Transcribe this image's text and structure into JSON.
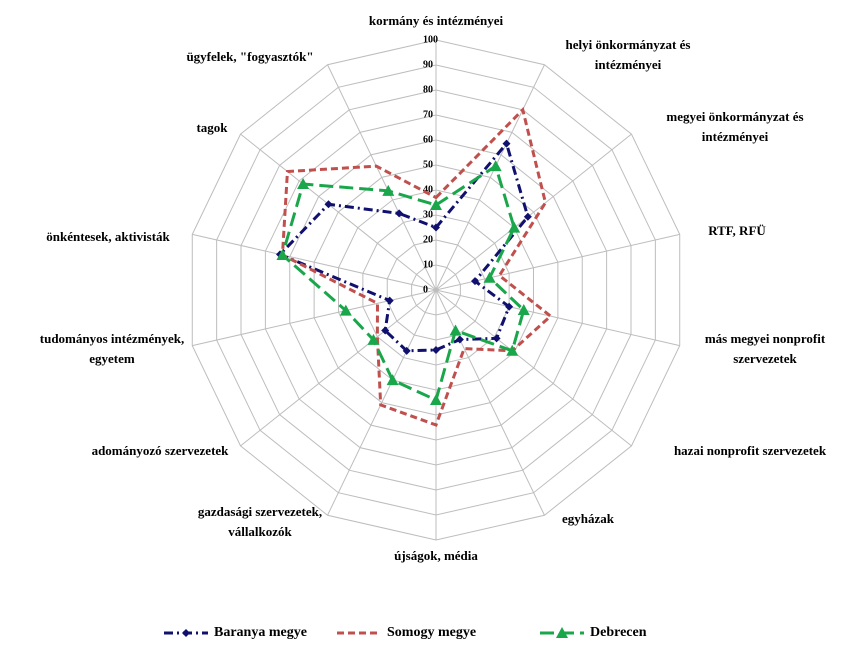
{
  "chart_data": {
    "type": "radar",
    "categories": [
      [
        "kormány és intézményei"
      ],
      [
        "helyi önkormányzat és",
        "intézményei"
      ],
      [
        "megyei önkormányzat és",
        "intézményei"
      ],
      [
        "RTF, RFÜ"
      ],
      [
        "más megyei nonprofit",
        "szervezetek"
      ],
      [
        "hazai nonprofit szervezetek"
      ],
      [
        "egyházak"
      ],
      [
        "újságok, média"
      ],
      [
        "gazdasági szervezetek,",
        "vállalkozók"
      ],
      [
        "adományozó szervezetek"
      ],
      [
        "tudományos intézmények,",
        "egyetem"
      ],
      [
        "önkéntesek, aktivisták"
      ],
      [
        "tagok"
      ],
      [
        "ügyfelek, \"fogyasztók\""
      ]
    ],
    "series": [
      {
        "name": "Baranya megye",
        "color": "#10106e",
        "values": [
          25,
          65,
          47,
          16,
          30,
          31,
          22,
          24,
          27,
          26,
          19,
          64,
          55,
          34
        ]
      },
      {
        "name": "Somogy megye",
        "color": "#c0504d",
        "values": [
          37,
          80,
          56,
          26,
          47,
          39,
          26,
          54,
          51,
          30,
          24,
          63,
          76,
          55
        ]
      },
      {
        "name": "Debrecen",
        "color": "#1aa64a",
        "values": [
          34,
          55,
          40,
          22,
          36,
          39,
          18,
          44,
          40,
          32,
          37,
          63,
          68,
          44
        ]
      }
    ],
    "ylim": [
      0,
      100
    ],
    "yticks": [
      0,
      10,
      20,
      30,
      40,
      50,
      60,
      70,
      80,
      90,
      100
    ],
    "grid": true,
    "legend": "bottom"
  }
}
